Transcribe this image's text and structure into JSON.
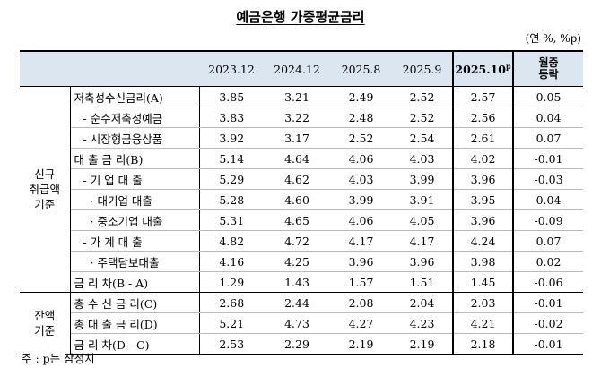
{
  "title": "예금은행 가중평균금리",
  "unit": "(연 %, %p)",
  "table": {
    "header": {
      "periods": [
        "2023.12",
        "2024.12",
        "2025.8",
        "2025.9"
      ],
      "latest": "2025.10",
      "latest_mark": "p",
      "change": [
        "월중",
        "등락"
      ]
    },
    "groups": [
      {
        "label": [
          "신규",
          "취급액",
          "기준"
        ],
        "rows": [
          {
            "label": "저축성수신금리(A)",
            "values": [
              "3.85",
              "3.21",
              "2.49",
              "2.52",
              "2.57",
              "0.05"
            ]
          },
          {
            "label": "- 순수저축성예금",
            "values": [
              "3.83",
              "3.22",
              "2.48",
              "2.52",
              "2.56",
              "0.04"
            ]
          },
          {
            "label": "- 시장형금융상품",
            "values": [
              "3.92",
              "3.17",
              "2.52",
              "2.54",
              "2.61",
              "0.07"
            ]
          },
          {
            "label": "대 출 금 리(B)",
            "values": [
              "5.14",
              "4.64",
              "4.06",
              "4.03",
              "4.02",
              "-0.01"
            ]
          },
          {
            "label": "- 기 업 대 출",
            "values": [
              "5.29",
              "4.62",
              "4.03",
              "3.99",
              "3.96",
              "-0.03"
            ]
          },
          {
            "label": "· 대기업 대출",
            "values": [
              "5.28",
              "4.60",
              "3.99",
              "3.91",
              "3.95",
              "0.04"
            ]
          },
          {
            "label": "· 중소기업 대출",
            "values": [
              "5.31",
              "4.65",
              "4.06",
              "4.05",
              "3.96",
              "-0.09"
            ]
          },
          {
            "label": "- 가 계 대 출",
            "values": [
              "4.82",
              "4.72",
              "4.17",
              "4.17",
              "4.24",
              "0.07"
            ]
          },
          {
            "label": "· 주택담보대출",
            "values": [
              "4.16",
              "4.25",
              "3.96",
              "3.96",
              "3.98",
              "0.02"
            ]
          },
          {
            "label": "금 리 차(B - A)",
            "values": [
              "1.29",
              "1.43",
              "1.57",
              "1.51",
              "1.45",
              "-0.06"
            ]
          }
        ]
      },
      {
        "label": [
          "잔액",
          "기준"
        ],
        "rows": [
          {
            "label": "총 수 신 금 리(C)",
            "values": [
              "2.68",
              "2.44",
              "2.08",
              "2.04",
              "2.03",
              "-0.01"
            ]
          },
          {
            "label": "총 대 출 금 리(D)",
            "values": [
              "5.21",
              "4.73",
              "4.27",
              "4.23",
              "4.21",
              "-0.02"
            ]
          },
          {
            "label": "금 리 차(D - C)",
            "values": [
              "2.53",
              "2.29",
              "2.19",
              "2.19",
              "2.18",
              "-0.01"
            ]
          }
        ]
      }
    ]
  },
  "footnote": "주 : p는 잠정치"
}
